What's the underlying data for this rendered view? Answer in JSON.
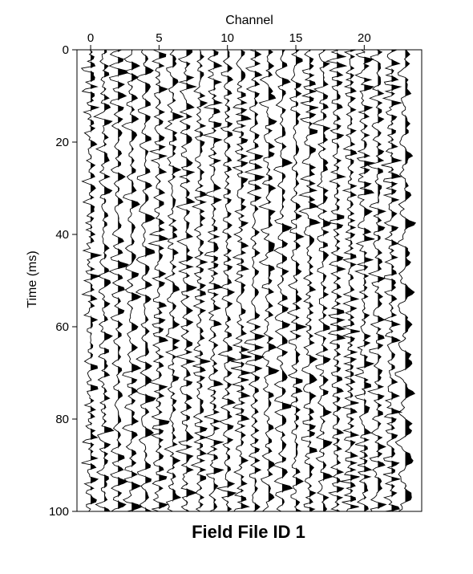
{
  "chart_data": {
    "type": "wiggle",
    "title": "Field File ID 1",
    "xlabel": "Channel",
    "ylabel": "Time (ms)",
    "channels": [
      0,
      1,
      2,
      3,
      4,
      5,
      6,
      7,
      8,
      9,
      10,
      11,
      12,
      13,
      14,
      15,
      16,
      17,
      18,
      19,
      20,
      21,
      22,
      23
    ],
    "x_ticks": [
      0,
      5,
      10,
      15,
      20
    ],
    "y_ticks": [
      0,
      20,
      40,
      60,
      80,
      100
    ],
    "ylim": [
      0,
      100
    ],
    "xlim": [
      -1,
      24.2
    ],
    "sample_interval_ms": 0.5,
    "fill": "positive-black",
    "grid": false,
    "legend": "none"
  }
}
